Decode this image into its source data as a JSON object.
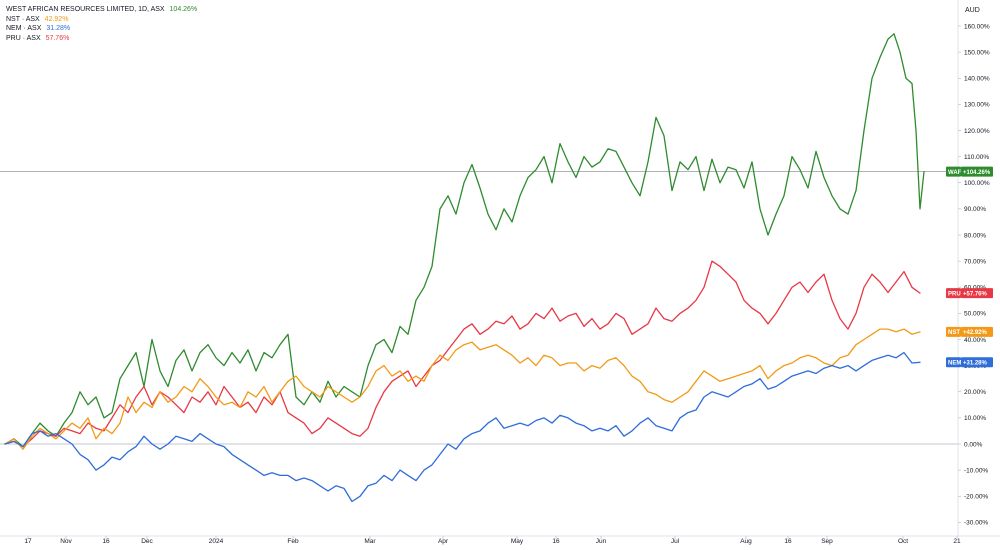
{
  "legend": [
    {
      "name": "WEST AFRICAN RESOURCES LIMITED, 1D, ASX",
      "value": "104.26%",
      "color": "#2e8b2e"
    },
    {
      "name": "NST · ASX",
      "value": "42.92%",
      "color": "#f29a18"
    },
    {
      "name": "NEM · ASX",
      "value": "31.28%",
      "color": "#2f6ddb"
    },
    {
      "name": "PRU · ASX",
      "value": "57.76%",
      "color": "#e83845"
    }
  ],
  "chart_data": {
    "type": "line",
    "currency": "AUD",
    "x_ticks": [
      "17",
      "Nov",
      "16",
      "Dec",
      "2024",
      "Feb",
      "Mar",
      "Apr",
      "May",
      "16",
      "Jun",
      "Jul",
      "Aug",
      "16",
      "Sep",
      "Oct",
      "21"
    ],
    "y_ticks": [
      "160.00%",
      "150.00%",
      "140.00%",
      "130.00%",
      "120.00%",
      "110.00%",
      "100.00%",
      "90.00%",
      "80.00%",
      "70.00%",
      "60.00%",
      "50.00%",
      "40.00%",
      "30.00%",
      "20.00%",
      "10.00%",
      "0.00%",
      "-10.00%",
      "-20.00%",
      "-30.00%"
    ],
    "ylim": [
      -30,
      160
    ],
    "x_range": [
      0,
      1000
    ],
    "x_tick_pos": [
      28,
      66,
      106,
      147,
      216,
      293,
      370,
      443,
      517,
      556,
      601,
      675,
      746,
      788,
      827,
      903,
      957
    ],
    "last_value_line": 104.26,
    "series": [
      {
        "name": "WAF",
        "label": "+104.26%",
        "color": "#2e8b2e",
        "x": [
          5,
          14,
          23,
          32,
          40,
          48,
          56,
          64,
          72,
          80,
          88,
          96,
          104,
          112,
          120,
          128,
          136,
          144,
          152,
          160,
          168,
          176,
          184,
          192,
          200,
          208,
          216,
          224,
          232,
          240,
          248,
          256,
          264,
          272,
          280,
          288,
          296,
          304,
          312,
          320,
          328,
          336,
          344,
          352,
          360,
          368,
          376,
          384,
          392,
          400,
          408,
          416,
          424,
          432,
          440,
          448,
          456,
          464,
          472,
          480,
          488,
          496,
          504,
          512,
          520,
          528,
          536,
          544,
          552,
          560,
          568,
          576,
          584,
          592,
          600,
          608,
          616,
          624,
          632,
          640,
          648,
          656,
          664,
          672,
          680,
          688,
          696,
          704,
          712,
          720,
          728,
          736,
          744,
          752,
          760,
          768,
          776,
          784,
          792,
          800,
          808,
          816,
          824,
          832,
          840,
          848,
          856,
          864,
          872,
          880,
          888,
          894,
          900,
          906,
          912,
          916,
          920,
          924
        ],
        "values": [
          0,
          2,
          -1,
          4,
          8,
          5,
          3,
          8,
          12,
          20,
          15,
          18,
          10,
          12,
          25,
          30,
          35,
          22,
          40,
          28,
          22,
          32,
          36,
          28,
          35,
          38,
          33,
          30,
          35,
          31,
          36,
          28,
          35,
          33,
          38,
          42,
          18,
          15,
          20,
          16,
          24,
          18,
          22,
          20,
          18,
          30,
          38,
          40,
          35,
          45,
          42,
          55,
          60,
          68,
          90,
          95,
          88,
          100,
          107,
          98,
          88,
          82,
          90,
          85,
          95,
          102,
          105,
          110,
          100,
          115,
          108,
          102,
          110,
          106,
          108,
          113,
          112,
          106,
          100,
          95,
          108,
          125,
          118,
          97,
          108,
          105,
          110,
          97,
          109,
          100,
          106,
          105,
          98,
          108,
          90,
          80,
          88,
          95,
          110,
          105,
          98,
          112,
          102,
          95,
          90,
          88,
          97,
          120,
          140,
          148,
          155,
          157,
          150,
          140,
          138,
          120,
          90,
          104.26
        ]
      },
      {
        "name": "PRU",
        "label": "+57.76%",
        "color": "#e83845",
        "x": [
          5,
          14,
          23,
          32,
          40,
          48,
          56,
          64,
          72,
          80,
          88,
          96,
          104,
          112,
          120,
          128,
          136,
          144,
          152,
          160,
          168,
          176,
          184,
          192,
          200,
          208,
          216,
          224,
          232,
          240,
          248,
          256,
          264,
          272,
          280,
          288,
          296,
          304,
          312,
          320,
          328,
          336,
          344,
          352,
          360,
          368,
          376,
          384,
          392,
          400,
          408,
          416,
          424,
          432,
          440,
          448,
          456,
          464,
          472,
          480,
          488,
          496,
          504,
          512,
          520,
          528,
          536,
          544,
          552,
          560,
          568,
          576,
          584,
          592,
          600,
          608,
          616,
          624,
          632,
          640,
          648,
          656,
          664,
          672,
          680,
          688,
          696,
          704,
          712,
          720,
          728,
          736,
          744,
          752,
          760,
          768,
          776,
          784,
          792,
          800,
          808,
          816,
          824,
          832,
          840,
          848,
          856,
          864,
          872,
          880,
          888,
          896,
          904,
          912,
          920
        ],
        "values": [
          0,
          1,
          -1,
          2,
          5,
          4,
          3,
          6,
          5,
          4,
          8,
          6,
          5,
          10,
          15,
          12,
          18,
          22,
          15,
          20,
          18,
          15,
          12,
          18,
          16,
          20,
          15,
          22,
          18,
          14,
          16,
          12,
          18,
          15,
          20,
          12,
          10,
          8,
          4,
          6,
          10,
          8,
          6,
          4,
          3,
          6,
          14,
          20,
          24,
          26,
          28,
          22,
          26,
          30,
          32,
          36,
          40,
          44,
          46,
          42,
          44,
          47,
          46,
          49,
          44,
          46,
          50,
          48,
          52,
          47,
          49,
          50,
          45,
          48,
          44,
          46,
          50,
          48,
          42,
          44,
          46,
          52,
          48,
          47,
          50,
          52,
          55,
          60,
          70,
          68,
          65,
          62,
          55,
          52,
          50,
          46,
          50,
          55,
          60,
          62,
          58,
          62,
          65,
          55,
          48,
          44,
          50,
          60,
          65,
          62,
          58,
          62,
          66,
          60,
          57.76
        ]
      },
      {
        "name": "NST",
        "label": "+42.92%",
        "color": "#f29a18",
        "x": [
          5,
          14,
          23,
          32,
          40,
          48,
          56,
          64,
          72,
          80,
          88,
          96,
          104,
          112,
          120,
          128,
          136,
          144,
          152,
          160,
          168,
          176,
          184,
          192,
          200,
          208,
          216,
          224,
          232,
          240,
          248,
          256,
          264,
          272,
          280,
          288,
          296,
          304,
          312,
          320,
          328,
          336,
          344,
          352,
          360,
          368,
          376,
          384,
          392,
          400,
          408,
          416,
          424,
          432,
          440,
          448,
          456,
          464,
          472,
          480,
          488,
          496,
          504,
          512,
          520,
          528,
          536,
          544,
          552,
          560,
          568,
          576,
          584,
          592,
          600,
          608,
          616,
          624,
          632,
          640,
          648,
          656,
          664,
          672,
          680,
          688,
          696,
          704,
          712,
          720,
          728,
          736,
          744,
          752,
          760,
          768,
          776,
          784,
          792,
          800,
          808,
          816,
          824,
          832,
          840,
          848,
          856,
          864,
          872,
          880,
          888,
          896,
          904,
          912,
          920
        ],
        "values": [
          0,
          2,
          -2,
          3,
          6,
          4,
          2,
          5,
          8,
          6,
          10,
          2,
          6,
          4,
          8,
          18,
          12,
          16,
          14,
          20,
          16,
          18,
          22,
          20,
          25,
          22,
          18,
          15,
          16,
          14,
          20,
          18,
          22,
          16,
          20,
          24,
          26,
          22,
          20,
          18,
          22,
          20,
          18,
          16,
          18,
          22,
          28,
          30,
          26,
          28,
          24,
          26,
          24,
          30,
          34,
          32,
          36,
          38,
          39,
          36,
          37,
          38,
          36,
          34,
          31,
          33,
          30,
          34,
          33,
          30,
          31,
          31,
          28,
          30,
          29,
          32,
          33,
          30,
          26,
          24,
          20,
          19,
          17,
          16,
          18,
          20,
          24,
          28,
          26,
          24,
          25,
          26,
          27,
          28,
          30,
          25,
          28,
          30,
          31,
          33,
          34,
          33,
          31,
          30,
          33,
          34,
          38,
          40,
          42,
          44,
          44,
          43,
          44,
          42,
          42.92
        ]
      },
      {
        "name": "NEM",
        "label": "+31.28%",
        "color": "#2f6ddb",
        "x": [
          5,
          14,
          23,
          32,
          40,
          48,
          56,
          64,
          72,
          80,
          88,
          96,
          104,
          112,
          120,
          128,
          136,
          144,
          152,
          160,
          168,
          176,
          184,
          192,
          200,
          208,
          216,
          224,
          232,
          240,
          248,
          256,
          264,
          272,
          280,
          288,
          296,
          304,
          312,
          320,
          328,
          336,
          344,
          352,
          360,
          368,
          376,
          384,
          392,
          400,
          408,
          416,
          424,
          432,
          440,
          448,
          456,
          464,
          472,
          480,
          488,
          496,
          504,
          512,
          520,
          528,
          536,
          544,
          552,
          560,
          568,
          576,
          584,
          592,
          600,
          608,
          616,
          624,
          632,
          640,
          648,
          656,
          664,
          672,
          680,
          688,
          696,
          704,
          712,
          720,
          728,
          736,
          744,
          752,
          760,
          768,
          776,
          784,
          792,
          800,
          808,
          816,
          824,
          832,
          840,
          848,
          856,
          864,
          872,
          880,
          888,
          896,
          904,
          912,
          920
        ],
        "values": [
          0,
          1,
          -1,
          4,
          5,
          3,
          4,
          2,
          0,
          -4,
          -6,
          -10,
          -8,
          -5,
          -6,
          -3,
          -1,
          3,
          0,
          -2,
          0,
          3,
          2,
          1,
          4,
          2,
          0,
          -1,
          -4,
          -6,
          -8,
          -10,
          -12,
          -11,
          -12,
          -12,
          -14,
          -13,
          -14,
          -16,
          -18,
          -16,
          -17,
          -22,
          -20,
          -16,
          -15,
          -12,
          -14,
          -10,
          -12,
          -14,
          -10,
          -8,
          -4,
          0,
          -2,
          2,
          4,
          5,
          8,
          10,
          6,
          7,
          8,
          7,
          9,
          10,
          8,
          11,
          10,
          8,
          7,
          5,
          6,
          5,
          7,
          3,
          5,
          8,
          10,
          7,
          6,
          5,
          10,
          12,
          13,
          18,
          20,
          19,
          18,
          20,
          22,
          23,
          25,
          21,
          22,
          24,
          26,
          27,
          28,
          27,
          29,
          30,
          29,
          30,
          28,
          30,
          32,
          33,
          34,
          33,
          35,
          31,
          31.28
        ]
      }
    ]
  }
}
